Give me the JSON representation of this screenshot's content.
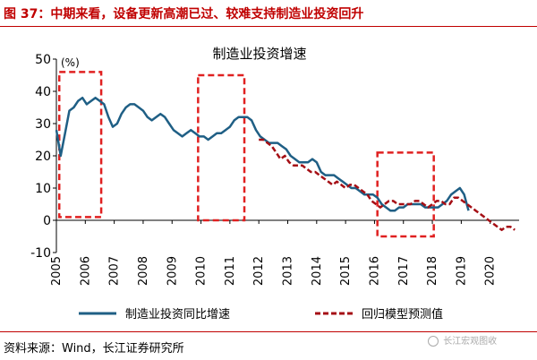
{
  "header": {
    "title": "图 37：中期来看，设备更新高潮已过、较难支持制造业投资回升"
  },
  "footer": {
    "source": "资料来源：Wind，长江证券研究所",
    "watermark": "长江宏观图收"
  },
  "colors": {
    "accent": "#c00000",
    "actual": "#1f5f85",
    "model": "#a50f15",
    "box": "#e02020"
  },
  "chart_data": {
    "type": "line",
    "title": "制造业投资增速",
    "unit_label": "(%)",
    "ylim": [
      -10,
      50
    ],
    "y_ticks": [
      -10,
      0,
      10,
      20,
      30,
      40,
      50
    ],
    "xlim": [
      2005,
      2021
    ],
    "x_ticks": [
      "2005",
      "2006",
      "2007",
      "2008",
      "2009",
      "2010",
      "2011",
      "2012",
      "2013",
      "2014",
      "2015",
      "2016",
      "2017",
      "2018",
      "2019",
      "2020"
    ],
    "grid": false,
    "legend_position": "bottom",
    "series": [
      {
        "name": "制造业投资同比增速",
        "style": "solid",
        "x": [
          2005.0,
          2005.15,
          2005.3,
          2005.45,
          2005.6,
          2005.75,
          2005.9,
          2006.05,
          2006.2,
          2006.35,
          2006.5,
          2006.65,
          2006.8,
          2006.95,
          2007.1,
          2007.25,
          2007.4,
          2007.55,
          2007.7,
          2007.85,
          2008.0,
          2008.15,
          2008.3,
          2008.45,
          2008.6,
          2008.75,
          2008.9,
          2009.05,
          2009.2,
          2009.35,
          2009.5,
          2009.65,
          2009.8,
          2009.95,
          2010.1,
          2010.25,
          2010.4,
          2010.55,
          2010.7,
          2010.85,
          2011.0,
          2011.15,
          2011.3,
          2011.45,
          2011.6,
          2011.75,
          2011.9,
          2012.05,
          2012.2,
          2012.35,
          2012.5,
          2012.65,
          2012.8,
          2012.95,
          2013.1,
          2013.25,
          2013.4,
          2013.55,
          2013.7,
          2013.85,
          2014.0,
          2014.15,
          2014.3,
          2014.45,
          2014.6,
          2014.75,
          2014.9,
          2015.05,
          2015.2,
          2015.35,
          2015.5,
          2015.65,
          2015.8,
          2015.95,
          2016.1,
          2016.25,
          2016.4,
          2016.55,
          2016.7,
          2016.85,
          2017.0,
          2017.15,
          2017.3,
          2017.45,
          2017.6,
          2017.75,
          2017.9,
          2018.05,
          2018.2,
          2018.35,
          2018.5,
          2018.65,
          2018.8,
          2018.95,
          2019.1,
          2019.25
        ],
        "values": [
          28,
          20,
          27,
          34,
          35,
          37,
          38,
          36,
          37,
          38,
          37,
          36,
          32,
          29,
          30,
          33,
          35,
          36,
          36,
          35,
          34,
          32,
          31,
          32,
          33,
          32,
          30,
          28,
          27,
          26,
          27,
          28,
          27,
          26,
          26,
          25,
          26,
          27,
          27,
          28,
          29,
          31,
          32,
          32,
          32,
          31,
          28,
          26,
          25,
          24,
          24,
          24,
          23,
          22,
          20,
          19,
          18,
          18,
          18,
          19,
          18,
          15,
          14,
          14,
          14,
          13,
          12,
          11,
          10,
          10,
          9,
          8,
          8,
          8,
          7,
          5,
          4,
          3,
          3,
          4,
          4,
          5,
          5,
          5,
          5,
          4,
          4,
          4,
          4,
          5,
          6,
          8,
          9,
          10,
          8,
          3
        ]
      },
      {
        "name": "回归模型预测值",
        "style": "dashed",
        "x": [
          2012.0,
          2012.15,
          2012.3,
          2012.45,
          2012.6,
          2012.75,
          2012.9,
          2013.05,
          2013.2,
          2013.35,
          2013.5,
          2013.65,
          2013.8,
          2013.95,
          2014.1,
          2014.25,
          2014.4,
          2014.55,
          2014.7,
          2014.85,
          2015.0,
          2015.15,
          2015.3,
          2015.45,
          2015.6,
          2015.75,
          2015.9,
          2016.05,
          2016.2,
          2016.35,
          2016.5,
          2016.65,
          2016.8,
          2016.95,
          2017.1,
          2017.25,
          2017.4,
          2017.55,
          2017.7,
          2017.85,
          2018.0,
          2018.15,
          2018.3,
          2018.45,
          2018.6,
          2018.75,
          2018.9,
          2019.05,
          2019.2,
          2019.35,
          2019.5,
          2019.65,
          2019.8,
          2019.95,
          2020.1,
          2020.25,
          2020.4,
          2020.55,
          2020.7,
          2020.85
        ],
        "values": [
          25,
          25,
          24,
          23,
          21,
          19,
          20,
          18,
          17,
          17,
          17,
          16,
          15,
          15,
          14,
          13,
          12,
          11,
          12,
          11,
          10,
          11,
          11,
          10,
          9,
          8,
          6,
          5,
          4,
          5,
          6,
          6,
          5,
          5,
          5,
          5,
          6,
          6,
          5,
          4,
          5,
          6,
          6,
          5,
          5,
          7,
          7,
          6,
          5,
          4,
          3,
          2,
          1,
          0,
          -1,
          -2,
          -3,
          -2,
          -2,
          -3
        ]
      }
    ],
    "highlight_boxes": [
      {
        "x": [
          2005.1,
          2006.55
        ],
        "y": [
          1,
          46
        ]
      },
      {
        "x": [
          2009.9,
          2011.5
        ],
        "y": [
          0,
          45
        ]
      },
      {
        "x": [
          2016.1,
          2018.05
        ],
        "y": [
          -5,
          21
        ]
      }
    ]
  }
}
